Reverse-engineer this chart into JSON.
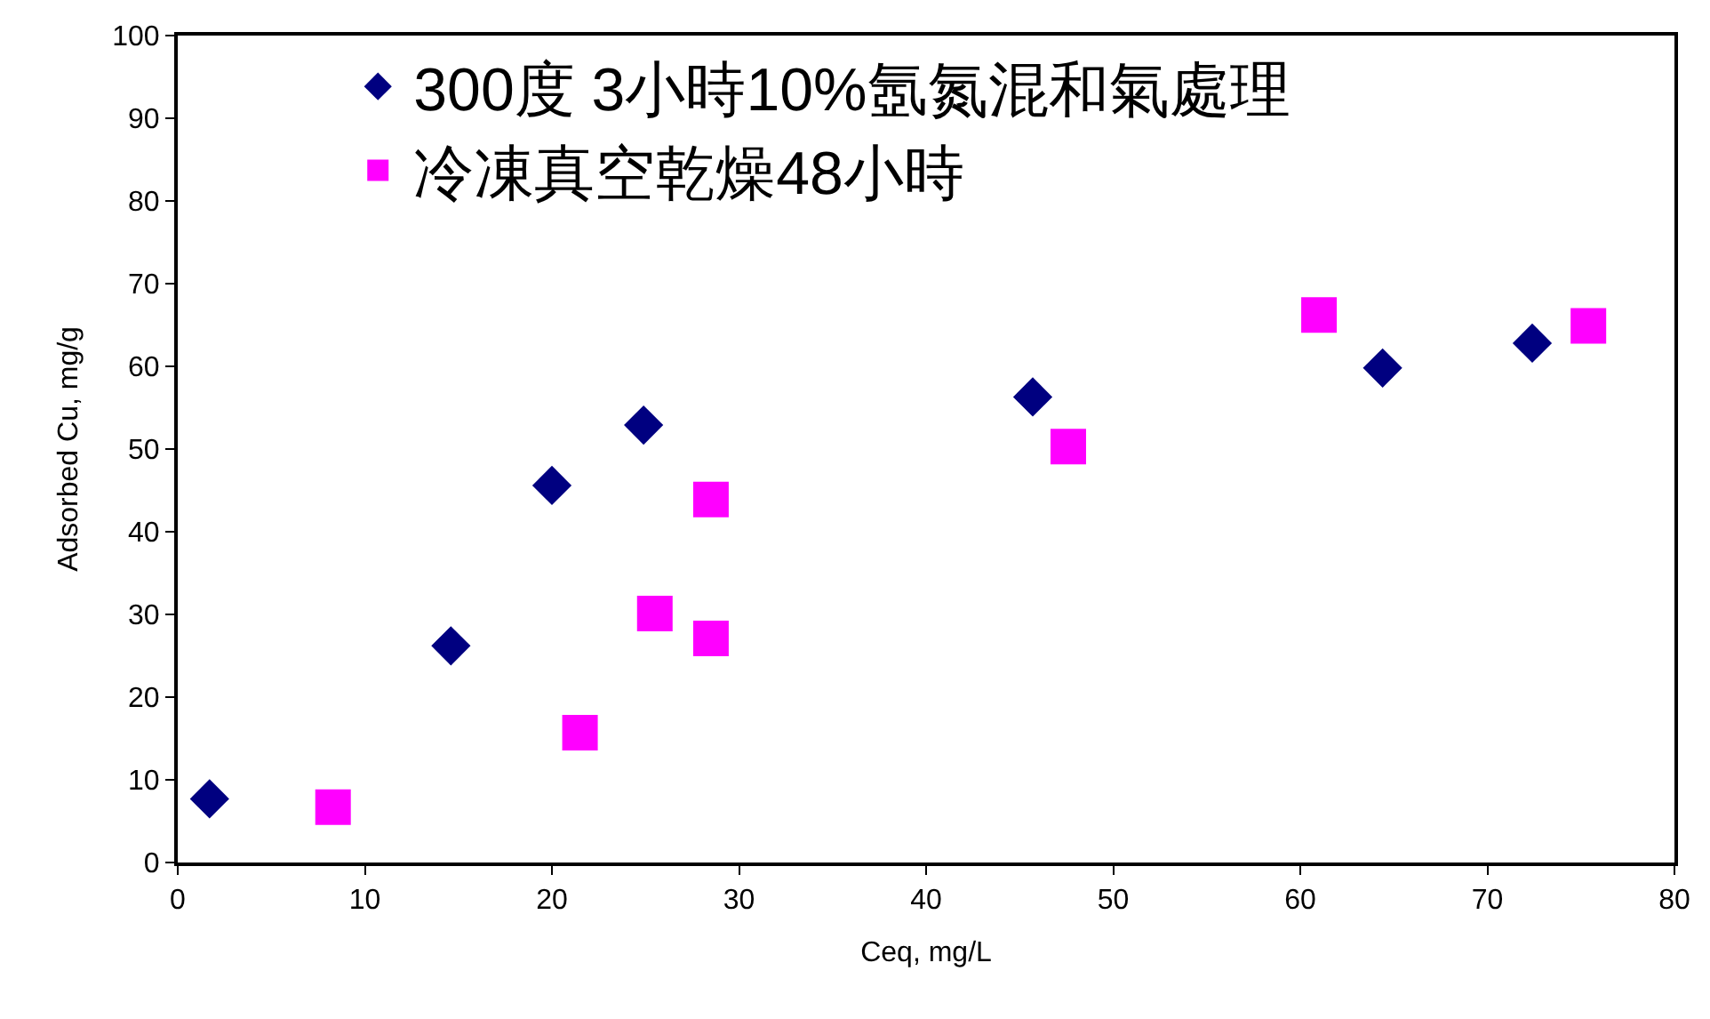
{
  "chart_data": {
    "type": "scatter",
    "xlabel": "Ceq, mg/L",
    "ylabel": "Adsorbed Cu, mg/g",
    "xlim": [
      0,
      80
    ],
    "xticks": [
      0,
      10,
      20,
      30,
      40,
      50,
      60,
      70,
      80
    ],
    "ylim": [
      0,
      100
    ],
    "yticks": [
      0,
      10,
      20,
      30,
      40,
      50,
      60,
      70,
      80,
      90,
      100
    ],
    "legend": "top left",
    "series": [
      {
        "name": "300度 3小時10%氬氮混和氣處理",
        "color": "#000080",
        "marker": "diamond",
        "x": [
          1.7,
          14.6,
          20.0,
          24.9,
          45.7,
          64.4,
          72.4
        ],
        "values": [
          7.7,
          26.2,
          45.6,
          52.9,
          56.3,
          59.8,
          62.8
        ]
      },
      {
        "name": "冷凍真空乾燥48小時",
        "color": "#ff00ff",
        "marker": "square",
        "x": [
          8.3,
          21.5,
          25.5,
          28.5,
          28.5,
          47.6,
          61.0,
          75.4
        ],
        "values": [
          6.7,
          15.7,
          30.1,
          27.1,
          43.9,
          50.3,
          66.2,
          64.9
        ]
      }
    ]
  }
}
